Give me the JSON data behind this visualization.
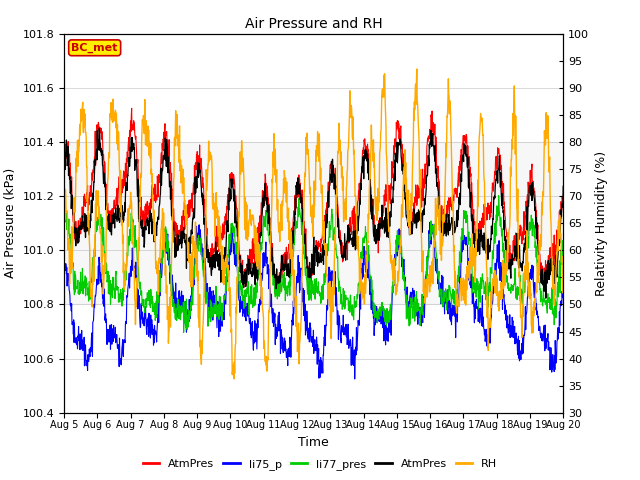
{
  "title": "Air Pressure and RH",
  "xlabel": "Time",
  "ylabel_left": "Air Pressure (kPa)",
  "ylabel_right": "Relativity Humidity (%)",
  "ylim_left": [
    100.4,
    101.8
  ],
  "ylim_right": [
    30,
    100
  ],
  "xtick_labels": [
    "Aug 5",
    "Aug 6",
    "Aug 7",
    "Aug 8",
    "Aug 9",
    "Aug 10",
    "Aug 11",
    "Aug 12",
    "Aug 13",
    "Aug 14",
    "Aug 15",
    "Aug 16",
    "Aug 17",
    "Aug 18",
    "Aug 19",
    "Aug 20"
  ],
  "yticks_left": [
    100.4,
    100.6,
    100.8,
    101.0,
    101.2,
    101.4,
    101.6,
    101.8
  ],
  "yticks_right": [
    30,
    35,
    40,
    45,
    50,
    55,
    60,
    65,
    70,
    75,
    80,
    85,
    90,
    95,
    100
  ],
  "colors": {
    "AtmPres_red": "#ff0000",
    "li75_p": "#0000ff",
    "li77_pres": "#00cc00",
    "AtmPres_black": "#000000",
    "RH": "#ffaa00"
  },
  "legend_labels": [
    "AtmPres",
    "li75_p",
    "li77_pres",
    "AtmPres",
    "RH"
  ],
  "annotation_text": "BC_met",
  "annotation_facecolor": "#ffee00",
  "annotation_edgecolor": "#cc0000",
  "annotation_textcolor": "#cc0000",
  "shading_ylim": [
    100.8,
    101.4
  ],
  "n_points": 1440,
  "figsize": [
    6.4,
    4.8
  ],
  "dpi": 100
}
